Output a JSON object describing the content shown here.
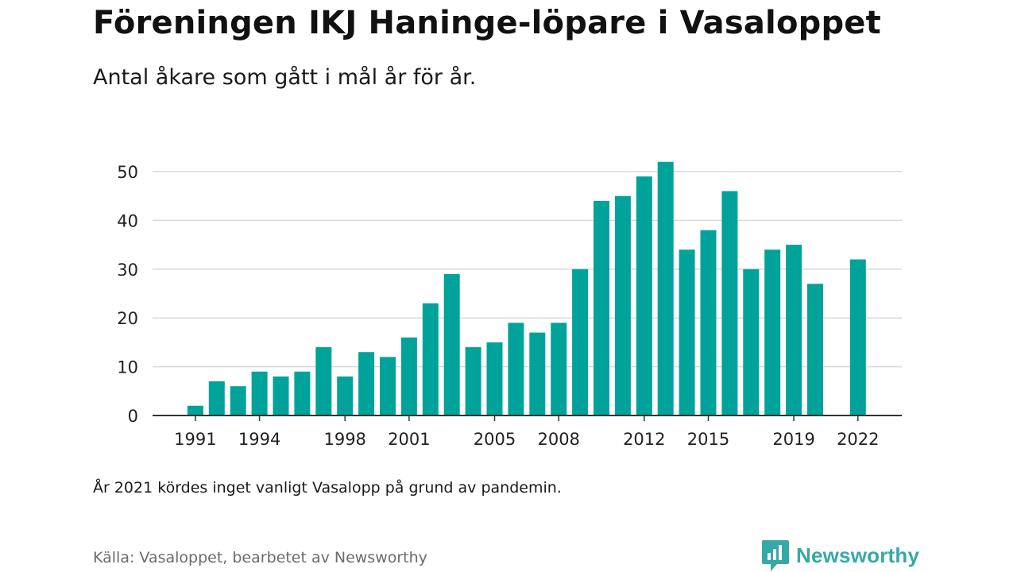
{
  "header": {
    "title": "Föreningen IKJ Haninge-löpare i Vasaloppet",
    "subtitle": "Antal åkare som gått i mål år för år."
  },
  "footer": {
    "note": "År 2021 kördes inget vanligt Vasalopp på grund av pandemin.",
    "source": "Källa: Vasaloppet, bearbetet av Newsworthy",
    "brand": "Newsworthy",
    "brand_icon": "newsworthy-logo-icon"
  },
  "colors": {
    "bar": "#00a39a",
    "grid": "#d9d9d9",
    "axis": "#333333",
    "brand": "#35a9a6"
  },
  "chart_data": {
    "type": "bar",
    "title": "Föreningen IKJ Haninge-löpare i Vasaloppet",
    "subtitle": "Antal åkare som gått i mål år för år.",
    "xlabel": "",
    "ylabel": "",
    "categories": [
      1990,
      1991,
      1992,
      1993,
      1994,
      1995,
      1996,
      1997,
      1998,
      1999,
      2000,
      2001,
      2002,
      2003,
      2004,
      2005,
      2006,
      2007,
      2008,
      2009,
      2010,
      2011,
      2012,
      2013,
      2014,
      2015,
      2016,
      2017,
      2018,
      2019,
      2020,
      2021,
      2022
    ],
    "values": [
      0,
      2,
      7,
      6,
      9,
      8,
      9,
      14,
      8,
      13,
      12,
      16,
      23,
      29,
      14,
      15,
      19,
      17,
      19,
      30,
      44,
      45,
      49,
      52,
      34,
      38,
      46,
      30,
      34,
      35,
      27,
      0,
      32
    ],
    "x_tick_labels": [
      "1991",
      "1994",
      "1998",
      "2001",
      "2005",
      "2008",
      "2012",
      "2015",
      "2019",
      "2022"
    ],
    "y_ticks": [
      0,
      10,
      20,
      30,
      40,
      50
    ],
    "ylim": [
      0,
      55
    ],
    "grid": true,
    "legend": "none"
  }
}
